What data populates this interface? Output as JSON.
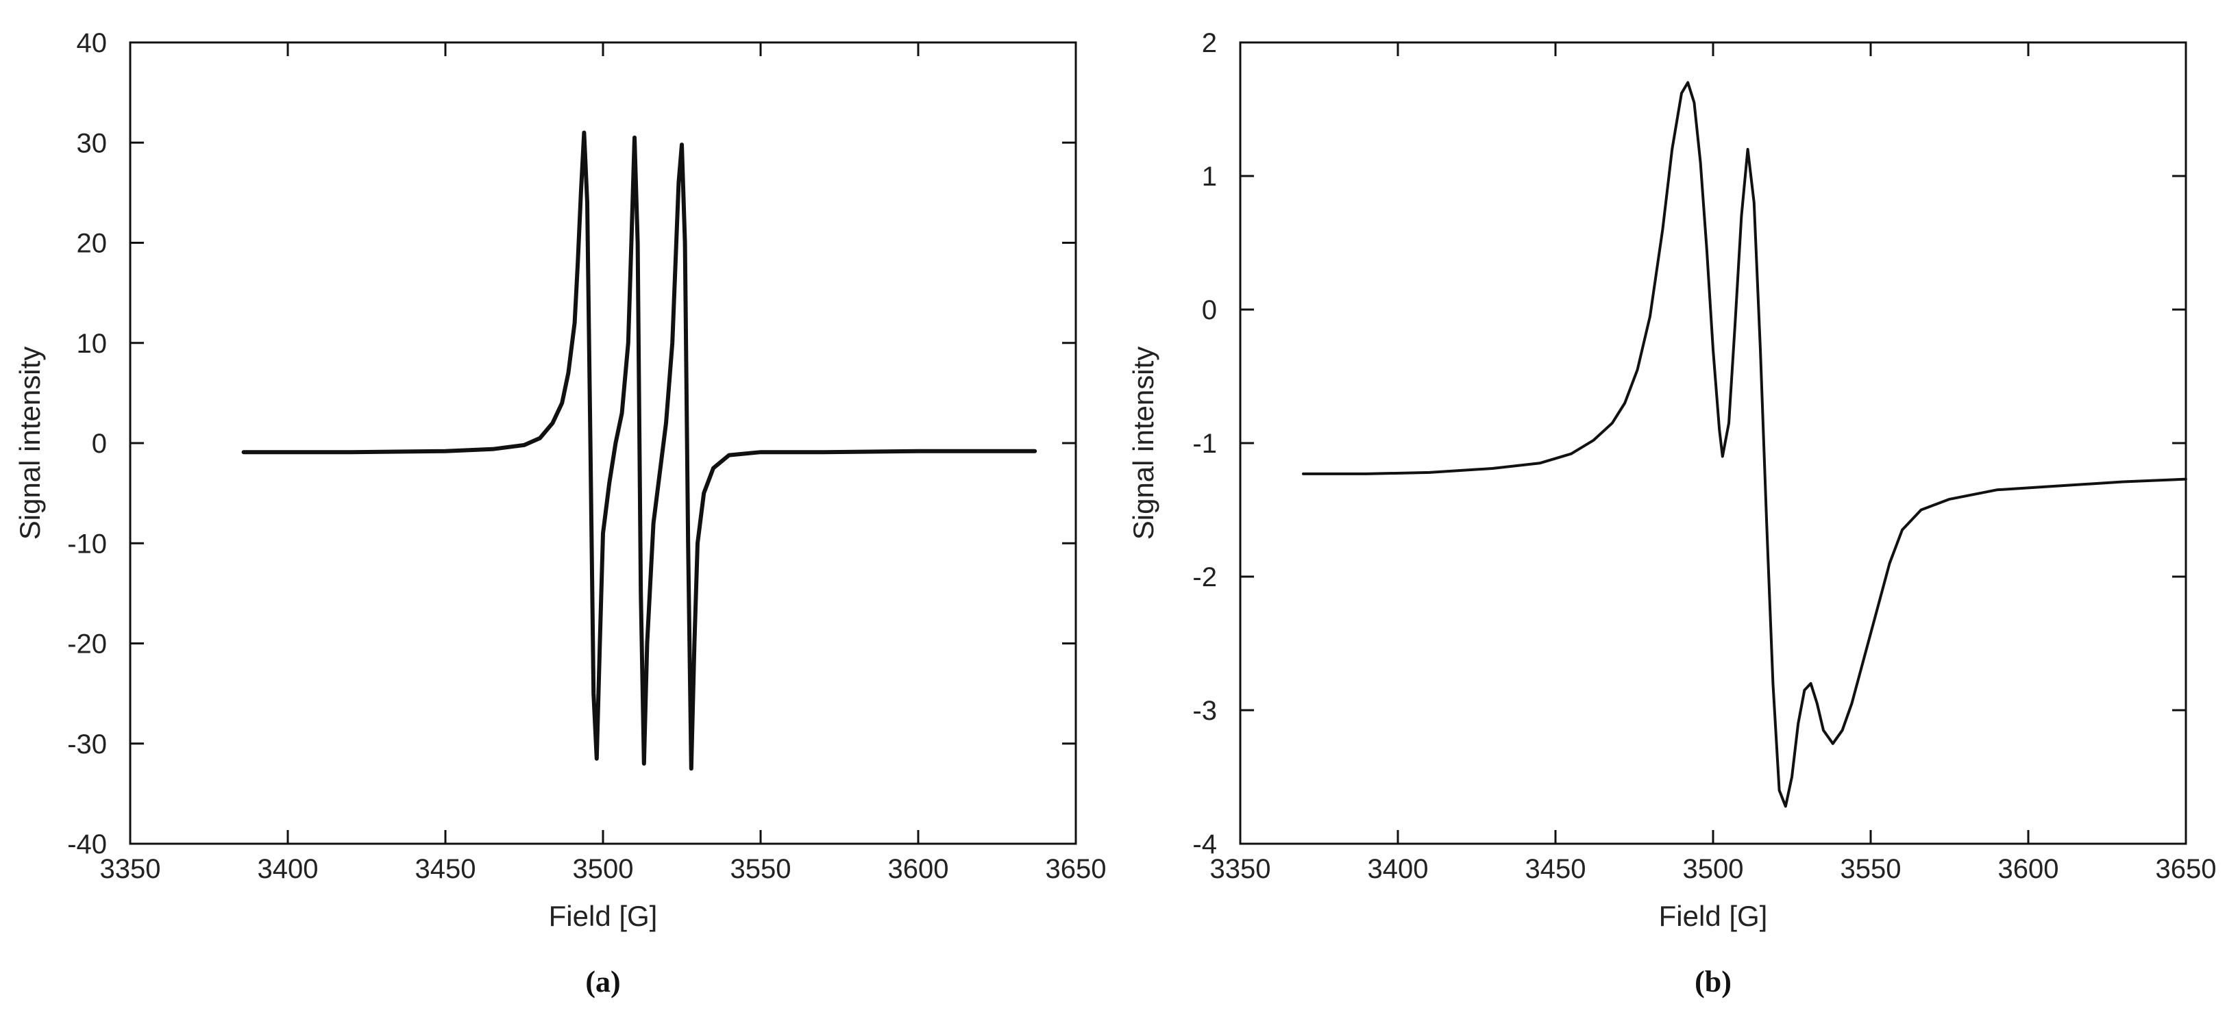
{
  "chart_data": [
    {
      "type": "line",
      "panel_label": "(a)",
      "xlabel": "Field [G]",
      "ylabel": "Signal intensity",
      "xlim": [
        3350,
        3650
      ],
      "ylim": [
        -40,
        40
      ],
      "xticks": [
        3350,
        3400,
        3450,
        3500,
        3550,
        3600,
        3650
      ],
      "yticks": [
        -40,
        -30,
        -20,
        -10,
        0,
        10,
        20,
        30,
        40
      ],
      "grid": false,
      "legend": "none",
      "line_color": "#111111",
      "series": [
        {
          "x": [
            3386,
            3420,
            3450,
            3465,
            3475,
            3480,
            3484,
            3487,
            3489,
            3491,
            3492,
            3493,
            3494,
            3495,
            3496,
            3497,
            3498,
            3499,
            3500,
            3502,
            3504,
            3506,
            3508,
            3509,
            3510,
            3511,
            3512,
            3513,
            3514,
            3516,
            3518,
            3520,
            3522,
            3523,
            3524,
            3525,
            3526,
            3527,
            3528,
            3529,
            3530,
            3532,
            3535,
            3540,
            3550,
            3570,
            3600,
            3637
          ],
          "y": [
            -0.9,
            -0.9,
            -0.8,
            -0.6,
            -0.2,
            0.5,
            2,
            4,
            7,
            12,
            18,
            25,
            31,
            24,
            0,
            -25,
            -31.5,
            -20,
            -9,
            -4,
            0,
            3,
            10,
            20,
            30.5,
            20,
            -15,
            -32,
            -20,
            -8,
            -3,
            2,
            10,
            18,
            26,
            29.8,
            20,
            -10,
            -32.5,
            -20,
            -10,
            -5,
            -2.5,
            -1.2,
            -0.9,
            -0.9,
            -0.8,
            -0.8
          ]
        }
      ]
    },
    {
      "type": "line",
      "panel_label": "(b)",
      "xlabel": "Field [G]",
      "ylabel": "Signal intensity",
      "xlim": [
        3350,
        3650
      ],
      "ylim": [
        -4,
        2
      ],
      "xticks": [
        3350,
        3400,
        3450,
        3500,
        3550,
        3600,
        3650
      ],
      "yticks": [
        -4,
        -3,
        -2,
        -1,
        0,
        1,
        2
      ],
      "grid": false,
      "legend": "none",
      "line_color": "#111111",
      "series": [
        {
          "x": [
            3370,
            3390,
            3410,
            3430,
            3445,
            3455,
            3462,
            3468,
            3472,
            3476,
            3480,
            3484,
            3487,
            3490,
            3492,
            3494,
            3496,
            3498,
            3500,
            3502,
            3503,
            3505,
            3507,
            3509,
            3511,
            3513,
            3515,
            3517,
            3519,
            3521,
            3523,
            3525,
            3527,
            3529,
            3531,
            3533,
            3535,
            3538,
            3541,
            3544,
            3548,
            3552,
            3556,
            3560,
            3566,
            3575,
            3590,
            3610,
            3630,
            3650
          ],
          "y": [
            -1.23,
            -1.23,
            -1.22,
            -1.19,
            -1.15,
            -1.08,
            -0.98,
            -0.85,
            -0.7,
            -0.45,
            -0.05,
            0.6,
            1.2,
            1.62,
            1.7,
            1.55,
            1.1,
            0.45,
            -0.3,
            -0.9,
            -1.1,
            -0.85,
            -0.1,
            0.7,
            1.2,
            0.8,
            -0.3,
            -1.6,
            -2.8,
            -3.6,
            -3.72,
            -3.5,
            -3.1,
            -2.85,
            -2.8,
            -2.95,
            -3.15,
            -3.25,
            -3.15,
            -2.95,
            -2.6,
            -2.25,
            -1.9,
            -1.65,
            -1.5,
            -1.42,
            -1.35,
            -1.32,
            -1.29,
            -1.27
          ]
        }
      ]
    }
  ]
}
